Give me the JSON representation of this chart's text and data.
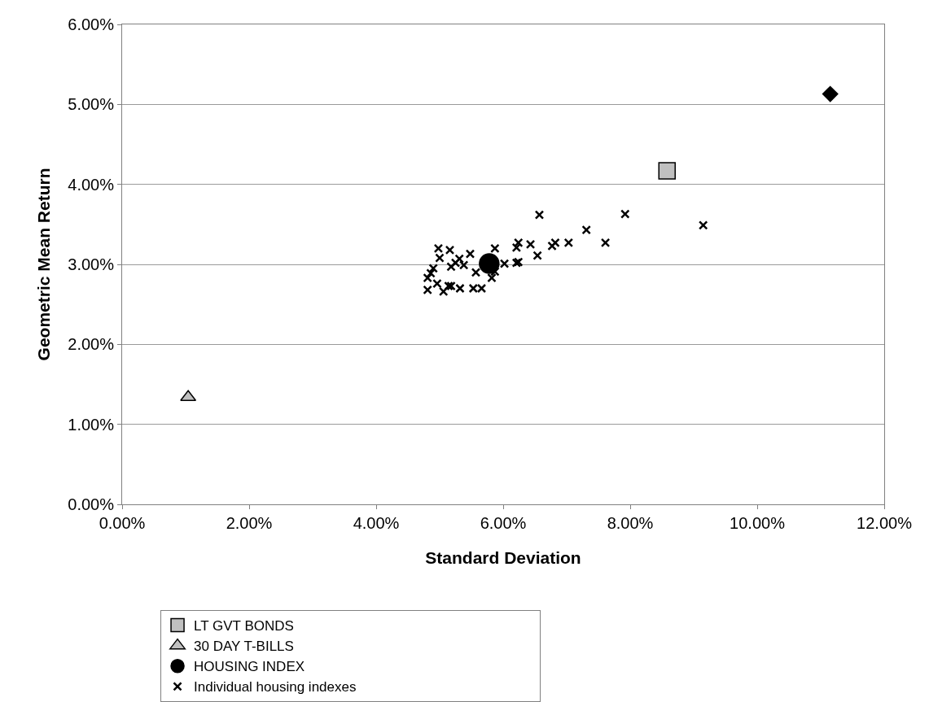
{
  "chart_data": {
    "type": "scatter",
    "xlabel": "Standard Deviation",
    "ylabel": "Geometric Mean Return",
    "xlim": [
      0,
      12
    ],
    "ylim": [
      0,
      6
    ],
    "xticks": [
      {
        "value": 0,
        "label": "0.00%"
      },
      {
        "value": 2,
        "label": "2.00%"
      },
      {
        "value": 4,
        "label": "4.00%"
      },
      {
        "value": 6,
        "label": "6.00%"
      },
      {
        "value": 8,
        "label": "8.00%"
      },
      {
        "value": 10,
        "label": "10.00%"
      },
      {
        "value": 12,
        "label": "12.00%"
      }
    ],
    "yticks": [
      {
        "value": 0,
        "label": "0.00%"
      },
      {
        "value": 1,
        "label": "1.00%"
      },
      {
        "value": 2,
        "label": "2.00%"
      },
      {
        "value": 3,
        "label": "3.00%"
      },
      {
        "value": 4,
        "label": "4.00%"
      },
      {
        "value": 5,
        "label": "5.00%"
      },
      {
        "value": 6,
        "label": "6.00%"
      }
    ],
    "grid": "y",
    "legend": "bottom",
    "series": [
      {
        "color": "#000000",
        "marker": "diamond",
        "x": [
          11.15
        ],
        "values": [
          5.13
        ]
      },
      {
        "name": "LT GVT BONDS",
        "color": "#c0c0c0",
        "marker": "square",
        "x": [
          8.58
        ],
        "values": [
          4.17
        ]
      },
      {
        "name": "30 DAY T-BILLS",
        "color": "#c0c0c0",
        "marker": "triangle",
        "x": [
          1.04
        ],
        "values": [
          1.34
        ]
      },
      {
        "name": "HOUSING INDEX",
        "color": "#000000",
        "marker": "circle",
        "x": [
          5.78
        ],
        "values": [
          3.01
        ]
      },
      {
        "name": "Individual housing indexes",
        "color": "#000000",
        "marker": "cross",
        "x": [
          6.57,
          7.92,
          9.15,
          7.31,
          7.03,
          7.61,
          6.77,
          6.82,
          6.43,
          6.54,
          6.21,
          6.24,
          6.24,
          6.21,
          5.87,
          6.02,
          4.98,
          5.16,
          5.48,
          5.31,
          5.38,
          5.18,
          4.9,
          4.86,
          4.81,
          4.81,
          4.96,
          5.06,
          5.14,
          5.18,
          5.32,
          5.53,
          5.66,
          5.57,
          null,
          5.82,
          5.87,
          5.0,
          5.25
        ],
        "values": [
          3.62,
          3.63,
          3.49,
          3.43,
          3.27,
          3.27,
          3.23,
          3.27,
          3.25,
          3.11,
          3.21,
          3.27,
          3.03,
          3.02,
          3.2,
          3.01,
          3.2,
          3.18,
          3.13,
          3.07,
          2.99,
          2.97,
          2.95,
          2.89,
          2.83,
          2.68,
          2.76,
          2.66,
          2.73,
          2.73,
          2.7,
          2.7,
          2.7,
          2.9,
          null,
          2.83,
          2.91,
          3.08,
          3.02
        ]
      }
    ]
  }
}
